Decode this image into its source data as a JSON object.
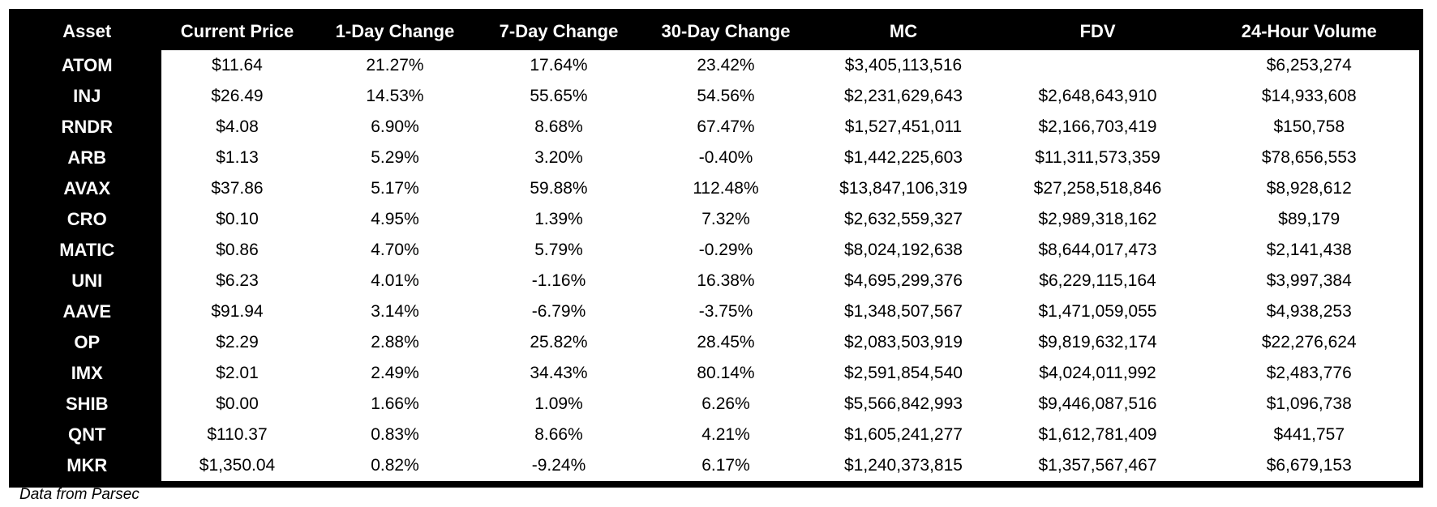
{
  "chart_data": {
    "type": "table",
    "source_note": "Data from Parsec",
    "columns": [
      "Asset",
      "Current Price",
      "1-Day Change",
      "7-Day Change",
      "30-Day Change",
      "MC",
      "FDV",
      "24-Hour Volume"
    ],
    "rows": [
      [
        "ATOM",
        "$11.64",
        "21.27%",
        "17.64%",
        "23.42%",
        "$3,405,113,516",
        "",
        "$6,253,274"
      ],
      [
        "INJ",
        "$26.49",
        "14.53%",
        "55.65%",
        "54.56%",
        "$2,231,629,643",
        "$2,648,643,910",
        "$14,933,608"
      ],
      [
        "RNDR",
        "$4.08",
        "6.90%",
        "8.68%",
        "67.47%",
        "$1,527,451,011",
        "$2,166,703,419",
        "$150,758"
      ],
      [
        "ARB",
        "$1.13",
        "5.29%",
        "3.20%",
        "-0.40%",
        "$1,442,225,603",
        "$11,311,573,359",
        "$78,656,553"
      ],
      [
        "AVAX",
        "$37.86",
        "5.17%",
        "59.88%",
        "112.48%",
        "$13,847,106,319",
        "$27,258,518,846",
        "$8,928,612"
      ],
      [
        "CRO",
        "$0.10",
        "4.95%",
        "1.39%",
        "7.32%",
        "$2,632,559,327",
        "$2,989,318,162",
        "$89,179"
      ],
      [
        "MATIC",
        "$0.86",
        "4.70%",
        "5.79%",
        "-0.29%",
        "$8,024,192,638",
        "$8,644,017,473",
        "$2,141,438"
      ],
      [
        "UNI",
        "$6.23",
        "4.01%",
        "-1.16%",
        "16.38%",
        "$4,695,299,376",
        "$6,229,115,164",
        "$3,997,384"
      ],
      [
        "AAVE",
        "$91.94",
        "3.14%",
        "-6.79%",
        "-3.75%",
        "$1,348,507,567",
        "$1,471,059,055",
        "$4,938,253"
      ],
      [
        "OP",
        "$2.29",
        "2.88%",
        "25.82%",
        "28.45%",
        "$2,083,503,919",
        "$9,819,632,174",
        "$22,276,624"
      ],
      [
        "IMX",
        "$2.01",
        "2.49%",
        "34.43%",
        "80.14%",
        "$2,591,854,540",
        "$4,024,011,992",
        "$2,483,776"
      ],
      [
        "SHIB",
        "$0.00",
        "1.66%",
        "1.09%",
        "6.26%",
        "$5,566,842,993",
        "$9,446,087,516",
        "$1,096,738"
      ],
      [
        "QNT",
        "$110.37",
        "0.83%",
        "8.66%",
        "4.21%",
        "$1,605,241,277",
        "$1,612,781,409",
        "$441,757"
      ],
      [
        "MKR",
        "$1,350.04",
        "0.82%",
        "-9.24%",
        "6.17%",
        "$1,240,373,815",
        "$1,357,567,467",
        "$6,679,153"
      ]
    ],
    "colors": {
      "header_bg": "#000000",
      "header_text": "#ffffff",
      "cell_bg": "#ffffff",
      "cell_text": "#000000"
    }
  }
}
